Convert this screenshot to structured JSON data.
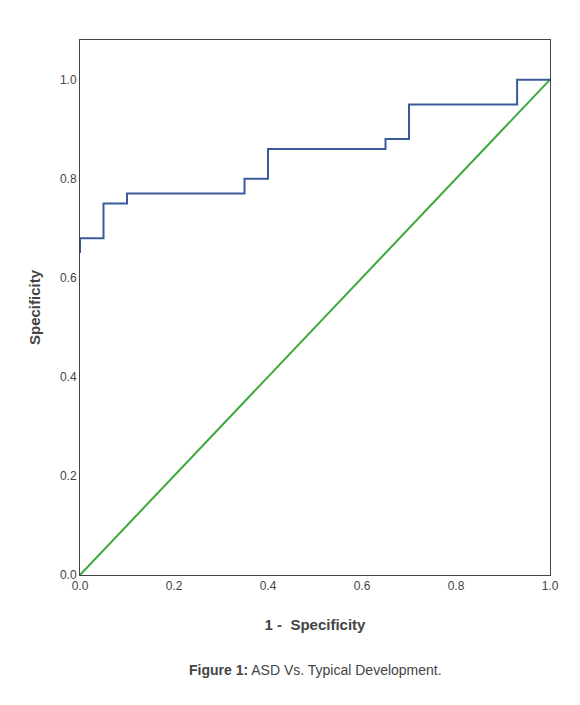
{
  "chart_data": {
    "type": "line",
    "xlabel": "1 -  Specificity",
    "ylabel": "Specificity",
    "annotations": [
      "Figure 1:",
      " ASD Vs. Typical Development."
    ],
    "xlim": [
      0.0,
      1.0
    ],
    "ylim": [
      0.0,
      1.08
    ],
    "xticks": [
      {
        "value": 0.0,
        "label": "0.0"
      },
      0.2,
      0.4,
      0.6,
      0.8,
      {
        "value": 1.0,
        "label": "1.0"
      }
    ],
    "yticks": [
      {
        "value": 0.0,
        "label": "0.0"
      },
      0.2,
      0.4,
      0.6,
      0.8,
      {
        "value": 1.0,
        "label": "1.0"
      }
    ],
    "grid": false,
    "series": [
      {
        "color": "#3aaa3a",
        "x": [
          0.0,
          1.0
        ],
        "values": [
          0.0,
          1.0
        ]
      },
      {
        "color": "#3a5a9a",
        "x": [
          0.0,
          0.0,
          0.05,
          0.05,
          0.1,
          0.1,
          0.35,
          0.35,
          0.4,
          0.4,
          0.65,
          0.65,
          0.7,
          0.7,
          0.93,
          0.93,
          1.0
        ],
        "values": [
          0.65,
          0.68,
          0.68,
          0.75,
          0.75,
          0.77,
          0.77,
          0.8,
          0.8,
          0.86,
          0.86,
          0.88,
          0.88,
          0.95,
          0.95,
          1.0,
          1.0
        ]
      }
    ]
  }
}
